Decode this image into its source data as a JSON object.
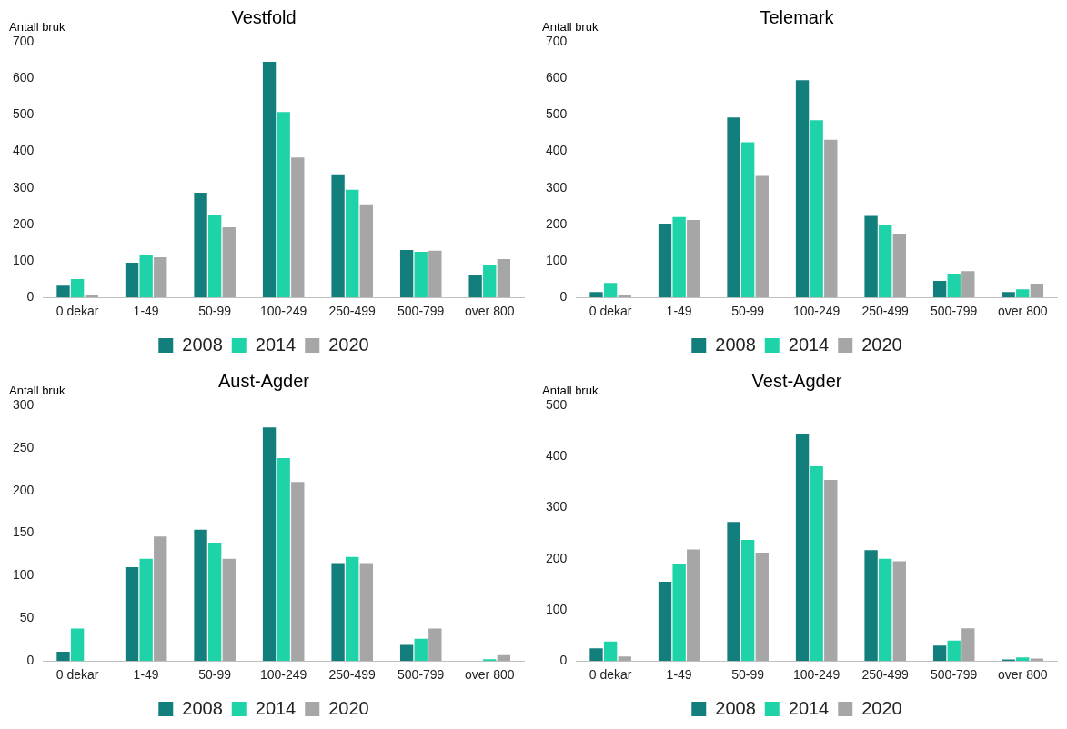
{
  "chart_data": [
    {
      "type": "bar",
      "title": "Vestfold",
      "ylabel": "Antall bruk",
      "categories": [
        "0 dekar",
        "1-49",
        "50-99",
        "100-249",
        "250-499",
        "500-799",
        "over 800"
      ],
      "ylim": [
        0,
        700
      ],
      "yticks": [
        0,
        100,
        200,
        300,
        400,
        500,
        600,
        700
      ],
      "grid": false,
      "legend": "bottom",
      "series": [
        {
          "name": "2008",
          "color": "#127f7c",
          "values": [
            32,
            95,
            287,
            645,
            337,
            130,
            62
          ]
        },
        {
          "name": "2014",
          "color": "#1dd3a7",
          "values": [
            50,
            115,
            225,
            508,
            295,
            125,
            88
          ]
        },
        {
          "name": "2020",
          "color": "#a6a6a6",
          "values": [
            7,
            110,
            192,
            383,
            255,
            128,
            105
          ]
        }
      ]
    },
    {
      "type": "bar",
      "title": "Telemark",
      "ylabel": "Antall bruk",
      "categories": [
        "0 dekar",
        "1-49",
        "50-99",
        "100-249",
        "250-499",
        "500-799",
        "over 800"
      ],
      "ylim": [
        0,
        700
      ],
      "yticks": [
        0,
        100,
        200,
        300,
        400,
        500,
        600,
        700
      ],
      "grid": false,
      "legend": "bottom",
      "series": [
        {
          "name": "2008",
          "color": "#127f7c",
          "values": [
            15,
            202,
            493,
            595,
            223,
            45,
            15
          ]
        },
        {
          "name": "2014",
          "color": "#1dd3a7",
          "values": [
            40,
            220,
            425,
            485,
            198,
            65,
            22
          ]
        },
        {
          "name": "2020",
          "color": "#a6a6a6",
          "values": [
            8,
            212,
            333,
            432,
            175,
            72,
            38
          ]
        }
      ]
    },
    {
      "type": "bar",
      "title": "Aust-Agder",
      "ylabel": "Antall bruk",
      "categories": [
        "0 dekar",
        "1-49",
        "50-99",
        "100-249",
        "250-499",
        "500-799",
        "over 800"
      ],
      "ylim": [
        0,
        300
      ],
      "yticks": [
        0,
        50,
        100,
        150,
        200,
        250,
        300
      ],
      "grid": false,
      "legend": "bottom",
      "series": [
        {
          "name": "2008",
          "color": "#127f7c",
          "values": [
            11,
            110,
            154,
            274,
            115,
            19,
            0
          ]
        },
        {
          "name": "2014",
          "color": "#1dd3a7",
          "values": [
            38,
            120,
            139,
            238,
            122,
            26,
            2
          ]
        },
        {
          "name": "2020",
          "color": "#a6a6a6",
          "values": [
            0,
            146,
            120,
            210,
            115,
            38,
            7
          ]
        }
      ]
    },
    {
      "type": "bar",
      "title": "Vest-Agder",
      "ylabel": "Antall bruk",
      "categories": [
        "0 dekar",
        "1-49",
        "50-99",
        "100-249",
        "250-499",
        "500-799",
        "over 800"
      ],
      "ylim": [
        0,
        500
      ],
      "yticks": [
        0,
        100,
        200,
        300,
        400,
        500
      ],
      "grid": false,
      "legend": "bottom",
      "series": [
        {
          "name": "2008",
          "color": "#127f7c",
          "values": [
            25,
            155,
            272,
            445,
            217,
            30,
            3
          ]
        },
        {
          "name": "2014",
          "color": "#1dd3a7",
          "values": [
            38,
            190,
            237,
            381,
            200,
            40,
            7
          ]
        },
        {
          "name": "2020",
          "color": "#a6a6a6",
          "values": [
            9,
            218,
            212,
            354,
            195,
            64,
            5
          ]
        }
      ]
    }
  ]
}
